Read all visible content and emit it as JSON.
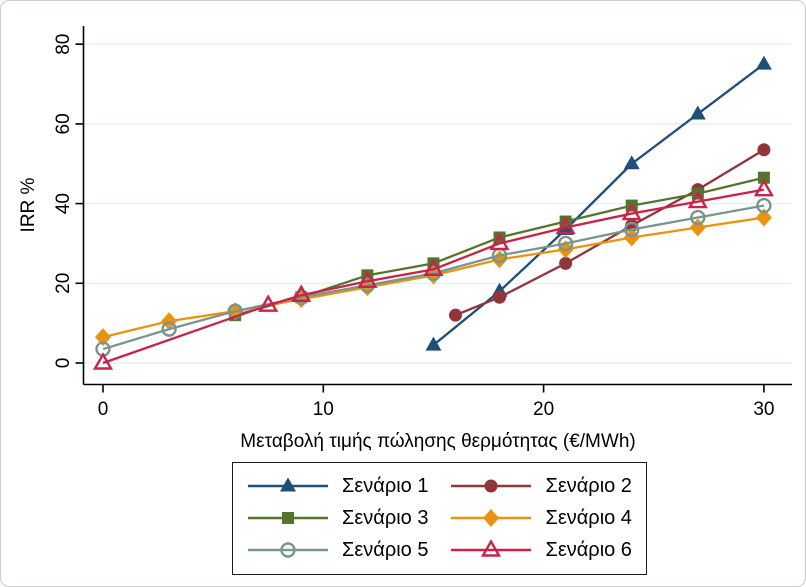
{
  "figure": {
    "xlabel": "Μεταβολή τιμής πώλησης θερμότητας (€/MWh)",
    "ylabel": "IRR %"
  },
  "chart_data": {
    "type": "line",
    "title": "",
    "xlabel": "Μεταβολή τιμής πώλησης θερμότητας (€/MWh)",
    "ylabel": "IRR %",
    "xlim": [
      0,
      30
    ],
    "ylim": [
      0,
      80
    ],
    "x_ticks": [
      0,
      10,
      20,
      30
    ],
    "y_ticks": [
      0,
      20,
      40,
      60,
      80
    ],
    "grid": "horizontal",
    "gridline_color": "#e4f1f5",
    "axis_color": "#000000",
    "legend_position": "bottom-center",
    "series": [
      {
        "name": "Σενάριο 1",
        "color": "#1f4e79",
        "marker": "triangle-filled",
        "points": [
          [
            15,
            4.5
          ],
          [
            18,
            18
          ],
          [
            21,
            33.5
          ],
          [
            24,
            50
          ],
          [
            27,
            62.5
          ],
          [
            30,
            75
          ]
        ]
      },
      {
        "name": "Σενάριο 2",
        "color": "#90353b",
        "marker": "circle-filled",
        "points": [
          [
            16,
            12
          ],
          [
            18,
            16.5
          ],
          [
            21,
            25
          ],
          [
            24,
            34.5
          ],
          [
            27,
            43.5
          ],
          [
            30,
            53.5
          ]
        ]
      },
      {
        "name": "Σενάριο 3",
        "color": "#55752f",
        "marker": "square-filled",
        "points": [
          [
            6,
            12
          ],
          [
            9,
            16.5
          ],
          [
            12,
            22
          ],
          [
            15,
            25
          ],
          [
            18,
            31.5
          ],
          [
            21,
            35.5
          ],
          [
            24,
            39.5
          ],
          [
            27,
            42.5
          ],
          [
            30,
            46.5
          ]
        ]
      },
      {
        "name": "Σενάριο 4",
        "color": "#e8940f",
        "marker": "diamond-filled",
        "points": [
          [
            0,
            6.5
          ],
          [
            3,
            10.5
          ],
          [
            6,
            13
          ],
          [
            9,
            16
          ],
          [
            12,
            19
          ],
          [
            15,
            22
          ],
          [
            18,
            26
          ],
          [
            21,
            28.5
          ],
          [
            24,
            31.5
          ],
          [
            27,
            34
          ],
          [
            30,
            36.5
          ]
        ]
      },
      {
        "name": "Σενάριο 5",
        "color": "#7a948e",
        "marker": "circle-open",
        "points": [
          [
            0,
            3.5
          ],
          [
            3,
            8.5
          ],
          [
            6,
            13
          ],
          [
            9,
            16.5
          ],
          [
            12,
            19.5
          ],
          [
            15,
            22.5
          ],
          [
            18,
            27
          ],
          [
            21,
            30
          ],
          [
            24,
            33.5
          ],
          [
            27,
            36.5
          ],
          [
            30,
            39.5
          ]
        ]
      },
      {
        "name": "Σενάριο 6",
        "color": "#c9234a",
        "marker": "triangle-open",
        "points": [
          [
            0,
            0
          ],
          [
            7.5,
            14.5
          ],
          [
            9,
            17
          ],
          [
            12,
            20.5
          ],
          [
            15,
            23.5
          ],
          [
            18,
            30
          ],
          [
            21,
            34
          ],
          [
            24,
            37.5
          ],
          [
            27,
            40.5
          ],
          [
            30,
            43.5
          ]
        ]
      }
    ]
  }
}
